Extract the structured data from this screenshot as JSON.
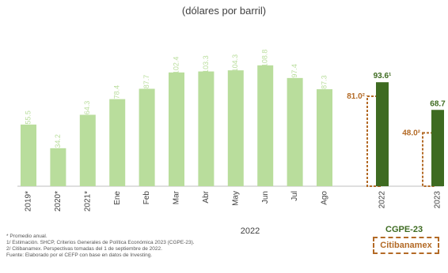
{
  "subtitle": "(dólares por barril)",
  "chart_data": {
    "type": "bar",
    "categories": [
      "2019*",
      "2020*",
      "2021*",
      "Ene",
      "Feb",
      "Mar",
      "Abr",
      "May",
      "Jun",
      "Jul",
      "Ago"
    ],
    "values": [
      55.5,
      34.2,
      64.3,
      78.4,
      87.7,
      102.4,
      103.3,
      104.3,
      108.8,
      97.4,
      87.3
    ],
    "value_labels": [
      "55.5",
      "34.2",
      "64.3",
      "78.4",
      "87.7",
      "102.4",
      "103.3",
      "104.3",
      "108.8",
      "97.4",
      "87.3"
    ],
    "group_label": "2022",
    "forecast": {
      "categories": [
        "2022",
        "2023"
      ],
      "cgpe": {
        "name": "CGPE-23",
        "values": [
          93.6,
          68.7
        ],
        "labels": [
          "93.6¹",
          "68.7"
        ]
      },
      "citibanamex": {
        "name": "Citibanamex",
        "values": [
          81.0,
          48.0
        ],
        "labels": [
          "81.0²",
          "48.0²"
        ]
      }
    },
    "ylim": [
      0,
      125
    ],
    "colors": {
      "bars": "#b9dd9c",
      "cgpe": "#3e6b21",
      "citi": "#b36a26"
    }
  },
  "notes": [
    "* Promedio anual.",
    "1/ Estimación. SHCP, Criterios Generales de Política Económica 2023 (CGPE-23).",
    "2/ Citibanamex. Perspectivas tomadas del 1 de septiembre de 2022.",
    "Fuente: Elaborado por el CEFP con base en datos de Investing."
  ]
}
